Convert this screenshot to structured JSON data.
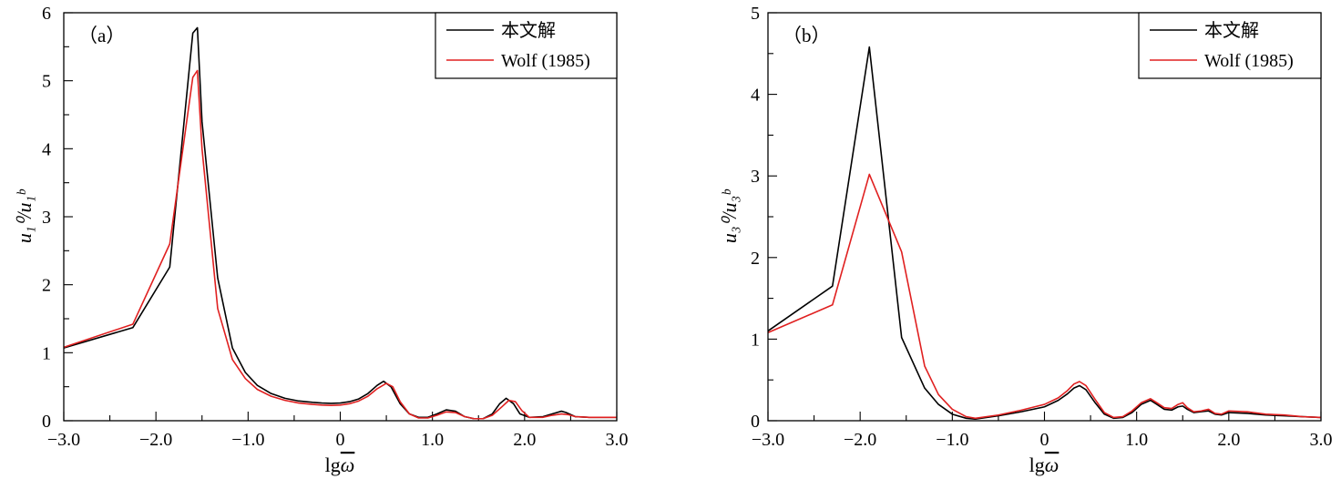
{
  "chart_data": [
    {
      "type": "line",
      "panel_label": "（a）",
      "xlabel_base": "lg",
      "xlabel_symbol": "ω",
      "ylabel": "u₁⁰/u₁ᵇ",
      "xlim": [
        -3.0,
        3.0
      ],
      "ylim": [
        0,
        6
      ],
      "xtick_values": [
        -3.0,
        -2.0,
        -1.0,
        0,
        1.0,
        2.0,
        3.0
      ],
      "xticks": [
        "−3.0",
        "−2.0",
        "−1.0",
        "0",
        "1.0",
        "2.0",
        "3.0"
      ],
      "yticks": [
        "0",
        "1",
        "2",
        "3",
        "4",
        "5",
        "6"
      ],
      "ytick_values": [
        0,
        1,
        2,
        3,
        4,
        5,
        6
      ],
      "legend_position": "top-right",
      "series": [
        {
          "name": "本文解",
          "color": "#000000",
          "x": [
            -3.0,
            -2.25,
            -1.85,
            -1.6,
            -1.55,
            -1.5,
            -1.33,
            -1.17,
            -1.03,
            -0.9,
            -0.75,
            -0.6,
            -0.45,
            -0.3,
            -0.2,
            -0.1,
            0.0,
            0.1,
            0.2,
            0.3,
            0.4,
            0.47,
            0.55,
            0.65,
            0.75,
            0.85,
            0.95,
            1.05,
            1.15,
            1.25,
            1.35,
            1.45,
            1.55,
            1.65,
            1.73,
            1.8,
            1.88,
            1.95,
            2.05,
            2.2,
            2.3,
            2.4,
            2.45,
            2.55,
            2.7,
            2.85,
            3.0
          ],
          "y": [
            1.07,
            1.37,
            2.26,
            5.7,
            5.78,
            4.4,
            2.1,
            1.07,
            0.71,
            0.52,
            0.4,
            0.33,
            0.29,
            0.27,
            0.26,
            0.255,
            0.26,
            0.28,
            0.32,
            0.4,
            0.52,
            0.58,
            0.5,
            0.25,
            0.1,
            0.05,
            0.05,
            0.1,
            0.16,
            0.14,
            0.06,
            0.03,
            0.03,
            0.1,
            0.25,
            0.33,
            0.25,
            0.1,
            0.05,
            0.06,
            0.1,
            0.14,
            0.12,
            0.06,
            0.05,
            0.05,
            0.05
          ]
        },
        {
          "name": "Wolf (1985)",
          "color": "#e02020",
          "x": [
            -3.0,
            -2.25,
            -1.85,
            -1.6,
            -1.55,
            -1.5,
            -1.33,
            -1.17,
            -1.03,
            -0.9,
            -0.75,
            -0.6,
            -0.45,
            -0.3,
            -0.2,
            -0.1,
            0.0,
            0.1,
            0.2,
            0.3,
            0.4,
            0.5,
            0.57,
            0.65,
            0.75,
            0.85,
            0.95,
            1.05,
            1.15,
            1.25,
            1.35,
            1.45,
            1.55,
            1.65,
            1.75,
            1.83,
            1.9,
            1.97,
            2.05,
            2.2,
            2.3,
            2.4,
            2.47,
            2.55,
            2.7,
            2.85,
            3.0
          ],
          "y": [
            1.08,
            1.42,
            2.6,
            5.05,
            5.15,
            4.0,
            1.65,
            0.9,
            0.62,
            0.46,
            0.36,
            0.3,
            0.26,
            0.24,
            0.23,
            0.225,
            0.23,
            0.25,
            0.29,
            0.36,
            0.47,
            0.55,
            0.5,
            0.28,
            0.1,
            0.04,
            0.04,
            0.08,
            0.13,
            0.12,
            0.06,
            0.03,
            0.03,
            0.08,
            0.2,
            0.3,
            0.28,
            0.15,
            0.05,
            0.05,
            0.08,
            0.1,
            0.09,
            0.06,
            0.05,
            0.05,
            0.05
          ]
        }
      ]
    },
    {
      "type": "line",
      "panel_label": "（b）",
      "xlabel_base": "lg",
      "xlabel_symbol": "ω",
      "ylabel": "u₃⁰/u₃ᵇ",
      "xlim": [
        -3.0,
        3.0
      ],
      "ylim": [
        0,
        5
      ],
      "xtick_values": [
        -3.0,
        -2.0,
        -1.0,
        0,
        1.0,
        2.0,
        3.0
      ],
      "xticks": [
        "−3.0",
        "−2.0",
        "−1.0",
        "0",
        "1.0",
        "2.0",
        "3.0"
      ],
      "yticks": [
        "0",
        "1",
        "2",
        "3",
        "4",
        "5"
      ],
      "ytick_values": [
        0,
        1,
        2,
        3,
        4,
        5
      ],
      "legend_position": "top-right",
      "series": [
        {
          "name": "本文解",
          "color": "#000000",
          "x": [
            -3.0,
            -2.3,
            -1.9,
            -1.55,
            -1.3,
            -1.15,
            -1.0,
            -0.85,
            -0.75,
            -0.5,
            -0.25,
            0.0,
            0.15,
            0.25,
            0.32,
            0.38,
            0.45,
            0.55,
            0.65,
            0.75,
            0.85,
            0.95,
            1.05,
            1.15,
            1.22,
            1.3,
            1.38,
            1.45,
            1.5,
            1.55,
            1.62,
            1.7,
            1.78,
            1.85,
            1.92,
            2.0,
            2.2,
            2.4,
            2.6,
            2.8,
            3.0
          ],
          "y": [
            1.1,
            1.65,
            4.58,
            1.02,
            0.4,
            0.2,
            0.08,
            0.03,
            0.02,
            0.06,
            0.11,
            0.17,
            0.25,
            0.33,
            0.4,
            0.43,
            0.38,
            0.22,
            0.08,
            0.03,
            0.04,
            0.1,
            0.2,
            0.25,
            0.2,
            0.14,
            0.13,
            0.17,
            0.18,
            0.14,
            0.1,
            0.11,
            0.12,
            0.08,
            0.07,
            0.1,
            0.09,
            0.07,
            0.06,
            0.05,
            0.04
          ]
        },
        {
          "name": "Wolf (1985)",
          "color": "#e02020",
          "x": [
            -3.0,
            -2.3,
            -1.9,
            -1.55,
            -1.3,
            -1.15,
            -1.0,
            -0.85,
            -0.75,
            -0.5,
            -0.25,
            0.0,
            0.15,
            0.25,
            0.32,
            0.38,
            0.45,
            0.55,
            0.65,
            0.75,
            0.85,
            0.95,
            1.05,
            1.15,
            1.22,
            1.3,
            1.38,
            1.45,
            1.5,
            1.55,
            1.62,
            1.7,
            1.78,
            1.85,
            1.92,
            2.0,
            2.2,
            2.4,
            2.6,
            2.8,
            3.0
          ],
          "y": [
            1.08,
            1.42,
            3.02,
            2.07,
            0.67,
            0.32,
            0.14,
            0.05,
            0.03,
            0.07,
            0.13,
            0.2,
            0.28,
            0.37,
            0.45,
            0.48,
            0.43,
            0.26,
            0.1,
            0.04,
            0.05,
            0.12,
            0.22,
            0.27,
            0.22,
            0.16,
            0.15,
            0.2,
            0.22,
            0.16,
            0.11,
            0.12,
            0.14,
            0.09,
            0.08,
            0.12,
            0.11,
            0.08,
            0.07,
            0.05,
            0.04
          ]
        }
      ]
    }
  ]
}
